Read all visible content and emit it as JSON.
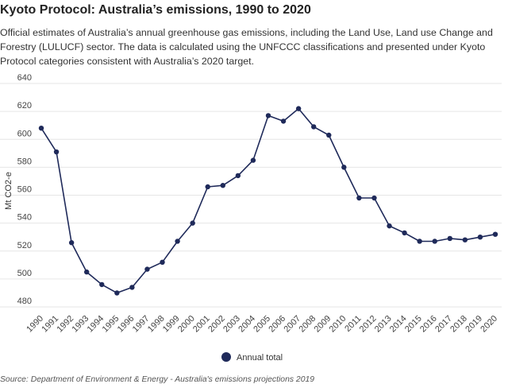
{
  "header": {
    "title": "Kyoto Protocol: Australia’s emissions, 1990 to 2020",
    "subtitle": "Official estimates of Australia’s annual greenhouse gas emissions, including the Land Use, Land use Change and Forestry (LULUCF) sector.  The data is calculated using the UNFCCC classifications and presented under Kyoto Protocol categories consistent with Australia’s 2020 target."
  },
  "footer": {
    "source": "Source: Department of Environment & Energy - Australia's emissions projections 2019"
  },
  "colors": {
    "series": "#1f2a5a",
    "grid": "#e6e6e6"
  },
  "chart_data": {
    "type": "line",
    "title": "Kyoto Protocol: Australia’s emissions, 1990 to 2020",
    "xlabel": "",
    "ylabel": "Mt CO2-e",
    "ylim": [
      480,
      640
    ],
    "yticks": [
      480,
      500,
      520,
      540,
      560,
      580,
      600,
      620,
      640
    ],
    "grid": true,
    "legend_position": "bottom-center",
    "categories": [
      "1990",
      "1991",
      "1992",
      "1993",
      "1994",
      "1995",
      "1996",
      "1997",
      "1998",
      "1999",
      "2000",
      "2001",
      "2002",
      "2003",
      "2004",
      "2005",
      "2006",
      "2007",
      "2008",
      "2009",
      "2010",
      "2011",
      "2012",
      "2013",
      "2014",
      "2015",
      "2016",
      "2017",
      "2018",
      "2019",
      "2020"
    ],
    "series": [
      {
        "name": "Annual total",
        "values": [
          608,
          591,
          526,
          505,
          496,
          490,
          494,
          507,
          512,
          527,
          540,
          566,
          567,
          574,
          585,
          617,
          613,
          622,
          609,
          603,
          580,
          558,
          558,
          538,
          533,
          527,
          527,
          529,
          528,
          530,
          532
        ]
      }
    ]
  }
}
